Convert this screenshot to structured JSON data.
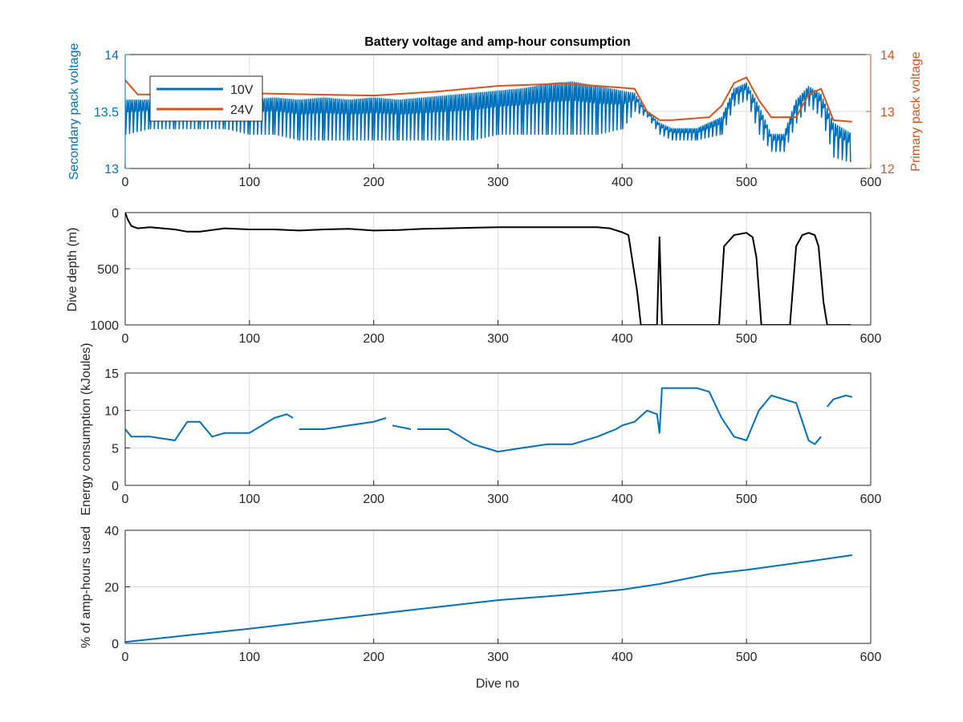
{
  "title": "Battery voltage and amp-hour consumption",
  "colors": {
    "blue": "#0072BD",
    "orange": "#D95319",
    "black": "#000000",
    "grid": "#dcdcdc",
    "axis": "#262626"
  },
  "chart_data": [
    {
      "type": "line",
      "xlabel": "",
      "ylabel": "Secondary pack voltage",
      "ylabel_right": "Primary pack voltage",
      "xlim": [
        0,
        600
      ],
      "ylim": [
        13,
        14
      ],
      "ylim_right": [
        12,
        14
      ],
      "xticks": [
        "0",
        "100",
        "200",
        "300",
        "400",
        "500",
        "600"
      ],
      "yticks": [
        "13",
        "13.5",
        "14"
      ],
      "yticks_right": [
        "12",
        "13",
        "14"
      ],
      "grid": true,
      "legend_placement": "top-left",
      "legend": [
        "10V",
        "24V"
      ],
      "series": [
        {
          "name": "10V",
          "axis": "left",
          "color": "#0072BD",
          "x": [
            0,
            20,
            40,
            60,
            80,
            100,
            120,
            140,
            160,
            180,
            200,
            220,
            240,
            260,
            280,
            300,
            320,
            340,
            360,
            380,
            400,
            410,
            420,
            430,
            440,
            460,
            480,
            490,
            500,
            510,
            520,
            530,
            540,
            550,
            560,
            570,
            585
          ],
          "y": [
            13.6,
            13.6,
            13.58,
            13.6,
            13.58,
            13.6,
            13.62,
            13.6,
            13.62,
            13.6,
            13.62,
            13.6,
            13.62,
            13.64,
            13.66,
            13.68,
            13.7,
            13.74,
            13.76,
            13.72,
            13.68,
            13.66,
            13.5,
            13.4,
            13.35,
            13.35,
            13.45,
            13.7,
            13.75,
            13.55,
            13.3,
            13.3,
            13.6,
            13.72,
            13.65,
            13.4,
            13.3
          ],
          "lows": [
            13.3,
            13.35,
            13.35,
            13.35,
            13.35,
            13.3,
            13.3,
            13.25,
            13.25,
            13.25,
            13.25,
            13.25,
            13.25,
            13.25,
            13.25,
            13.3,
            13.3,
            13.3,
            13.3,
            13.3,
            13.35,
            13.5,
            13.45,
            13.3,
            13.25,
            13.25,
            13.3,
            13.55,
            13.6,
            13.3,
            13.15,
            13.15,
            13.4,
            13.55,
            13.45,
            13.1,
            13.05
          ]
        },
        {
          "name": "24V",
          "axis": "right",
          "color": "#D95319",
          "x": [
            0,
            10,
            20,
            50,
            100,
            150,
            200,
            250,
            300,
            340,
            350,
            380,
            410,
            420,
            430,
            440,
            470,
            480,
            490,
            500,
            510,
            520,
            540,
            550,
            560,
            570,
            585
          ],
          "y": [
            13.55,
            13.3,
            13.3,
            13.32,
            13.32,
            13.3,
            13.28,
            13.35,
            13.45,
            13.48,
            13.5,
            13.45,
            13.4,
            13.0,
            12.85,
            12.85,
            12.9,
            13.1,
            13.5,
            13.6,
            13.2,
            12.9,
            12.9,
            13.3,
            13.4,
            12.85,
            12.82
          ]
        }
      ]
    },
    {
      "type": "line",
      "xlabel": "",
      "ylabel": "Dive depth (m)",
      "xlim": [
        0,
        600
      ],
      "ylim": [
        0,
        1000
      ],
      "y_reversed": true,
      "xticks": [
        "0",
        "100",
        "200",
        "300",
        "400",
        "500",
        "600"
      ],
      "yticks": [
        "0",
        "500",
        "1000"
      ],
      "grid": true,
      "series": [
        {
          "color": "#000000",
          "x": [
            0,
            2,
            5,
            10,
            20,
            30,
            40,
            50,
            60,
            80,
            100,
            120,
            140,
            160,
            180,
            200,
            220,
            240,
            260,
            280,
            300,
            320,
            340,
            360,
            380,
            390,
            400,
            405,
            412,
            415,
            420,
            425,
            428,
            430,
            432,
            434,
            440,
            470,
            478,
            482,
            490,
            500,
            505,
            508,
            512,
            530,
            535,
            540,
            545,
            550,
            555,
            558,
            562,
            565,
            570,
            584
          ],
          "y": [
            0,
            60,
            120,
            140,
            130,
            140,
            150,
            170,
            170,
            140,
            150,
            150,
            160,
            150,
            145,
            160,
            155,
            145,
            140,
            135,
            130,
            130,
            130,
            130,
            130,
            140,
            175,
            200,
            700,
            1000,
            1000,
            1000,
            1000,
            220,
            1000,
            1000,
            1000,
            1000,
            1000,
            300,
            200,
            180,
            220,
            400,
            1000,
            1000,
            1000,
            300,
            200,
            180,
            200,
            300,
            800,
            1000,
            1000,
            1000
          ]
        }
      ]
    },
    {
      "type": "line",
      "xlabel": "",
      "ylabel": "Energy consumption (kJoules)",
      "xlim": [
        0,
        600
      ],
      "ylim": [
        0,
        15
      ],
      "xticks": [
        "0",
        "100",
        "200",
        "300",
        "400",
        "500",
        "600"
      ],
      "yticks": [
        "0",
        "5",
        "10",
        "15"
      ],
      "grid": true,
      "series": [
        {
          "color": "#0072BD",
          "x": [
            0,
            5,
            20,
            40,
            50,
            60,
            70,
            80,
            100,
            120,
            130,
            135,
            null,
            140,
            160,
            180,
            200,
            210,
            null,
            215,
            230,
            null,
            235,
            260,
            280,
            300,
            320,
            340,
            360,
            380,
            395,
            400,
            410,
            420,
            428,
            430,
            432,
            440,
            460,
            470,
            480,
            490,
            500,
            510,
            520,
            540,
            550,
            555,
            560,
            null,
            565,
            570,
            580,
            585
          ],
          "y": [
            7.5,
            6.5,
            6.5,
            6,
            8.5,
            8.5,
            6.5,
            7,
            7,
            9,
            9.5,
            9,
            null,
            7.5,
            7.5,
            8,
            8.5,
            9,
            null,
            8,
            7.5,
            null,
            7.5,
            7.5,
            5.5,
            4.5,
            5,
            5.5,
            5.5,
            6.5,
            7.5,
            8,
            8.5,
            10,
            9.5,
            7,
            13,
            13,
            13,
            12.5,
            9,
            6.5,
            6,
            10,
            12,
            11,
            6,
            5.5,
            6.5,
            null,
            10.5,
            11.5,
            12,
            11.8
          ]
        }
      ]
    },
    {
      "type": "line",
      "xlabel": "Dive no",
      "ylabel": "% of amp-hours used",
      "xlim": [
        0,
        600
      ],
      "ylim": [
        0,
        40
      ],
      "xticks": [
        "0",
        "100",
        "200",
        "300",
        "400",
        "500",
        "600"
      ],
      "yticks": [
        "0",
        "20",
        "40"
      ],
      "grid": true,
      "series": [
        {
          "color": "#0072BD",
          "x": [
            0,
            100,
            200,
            300,
            350,
            400,
            430,
            470,
            500,
            550,
            585
          ],
          "y": [
            0.5,
            5.2,
            10.3,
            15.3,
            17,
            19,
            21,
            24.5,
            26,
            29,
            31.2
          ]
        }
      ]
    }
  ]
}
